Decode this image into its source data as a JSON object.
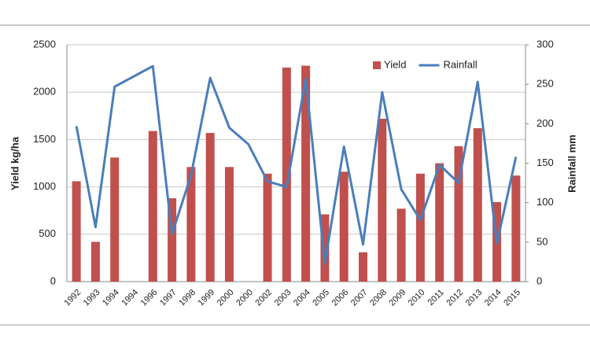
{
  "chart_data": {
    "type": "bar-line",
    "categories": [
      "1992",
      "1993",
      "1994",
      "1994",
      "1996",
      "1997",
      "1998",
      "1999",
      "2000",
      "2000",
      "2002",
      "2003",
      "2004",
      "2005",
      "2006",
      "2007",
      "2008",
      "2009",
      "2010",
      "2011",
      "2012",
      "2013",
      "2014",
      "2015"
    ],
    "series": [
      {
        "name": "Yield",
        "type": "bar",
        "color": "#c0504d",
        "values": [
          1060,
          420,
          1310,
          null,
          1590,
          880,
          1210,
          1570,
          1210,
          null,
          1140,
          2260,
          2280,
          710,
          1160,
          310,
          1720,
          770,
          1140,
          1250,
          1430,
          1620,
          840,
          1120
        ]
      },
      {
        "name": "Rainfall",
        "type": "line",
        "axis": "y2",
        "color": "#4a7ebb",
        "values": [
          197,
          69,
          247,
          260,
          273,
          60,
          135,
          258,
          195,
          174,
          127,
          120,
          257,
          23,
          171,
          47,
          240,
          117,
          78,
          148,
          125,
          253,
          48,
          158
        ]
      }
    ],
    "y_label": "Yield kg/ha",
    "y2_label": "Rainfall mm",
    "ylim": [
      0,
      2500
    ],
    "yticks": [
      0,
      500,
      1000,
      1500,
      2000,
      2500
    ],
    "y2lim": [
      0,
      300
    ],
    "y2ticks": [
      0,
      50,
      100,
      150,
      200,
      250,
      300
    ],
    "grid": true,
    "legend": "upper right"
  }
}
